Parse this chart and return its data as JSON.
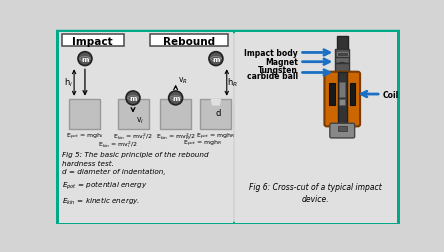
{
  "bg_color": "#d4d4d4",
  "border_color": "#00aa88",
  "panel_bg": "#e0e0e0",
  "block_color": "#c0c0c0",
  "block_edge": "#999999",
  "ball_color": "#555555",
  "ball_edge_color": "#222222",
  "blue_arrow_color": "#1a6fc4",
  "title_impact": "Impact",
  "title_rebound": "Rebound",
  "fig6_caption": "Fig 6: Cross-cut of a typical impact\ndevice.",
  "label_impact_body": "Impact body",
  "label_magnet": "Magnet",
  "label_tungsten_1": "Tungsten",
  "label_tungsten_2": "carbide ball",
  "label_coil": "Coil"
}
